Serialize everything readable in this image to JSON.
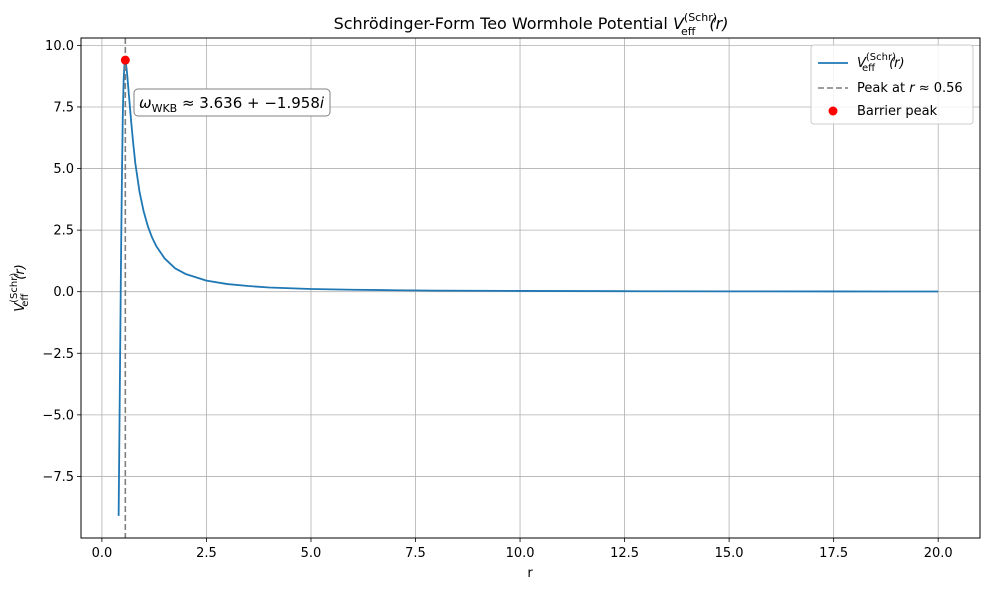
{
  "chart_data": {
    "type": "line",
    "title": "Schrödinger-Form Teo Wormhole Potential V_eff^(Schr)(r)",
    "title_parts": {
      "prefix": "Schrödinger-Form Teo Wormhole Potential ",
      "symbol": "V",
      "sub": "eff",
      "sup": "(Schr)",
      "suffix": "(r)"
    },
    "xlabel": "r",
    "ylabel": "V_eff^(Schr)(r)",
    "xlim": [
      -0.5,
      21.0
    ],
    "ylim": [
      -10.0,
      10.3
    ],
    "xticks": [
      0.0,
      2.5,
      5.0,
      7.5,
      10.0,
      12.5,
      15.0,
      17.5,
      20.0
    ],
    "xtick_labels": [
      "0.0",
      "2.5",
      "5.0",
      "7.5",
      "10.0",
      "12.5",
      "15.0",
      "17.5",
      "20.0"
    ],
    "yticks": [
      -7.5,
      -5.0,
      -2.5,
      0.0,
      2.5,
      5.0,
      7.5,
      10.0
    ],
    "ytick_labels": [
      "−7.5",
      "−5.0",
      "−2.5",
      "0.0",
      "2.5",
      "5.0",
      "7.5",
      "10.0"
    ],
    "grid": true,
    "legend_position": "top-right",
    "series": [
      {
        "name": "V_eff^(Schr)(r)",
        "kind": "line",
        "color": "#1f77b4",
        "x": [
          0.4,
          0.42,
          0.44,
          0.46,
          0.48,
          0.5,
          0.52,
          0.54,
          0.56,
          0.58,
          0.6,
          0.63,
          0.66,
          0.7,
          0.75,
          0.8,
          0.9,
          1.0,
          1.1,
          1.2,
          1.3,
          1.5,
          1.75,
          2.0,
          2.5,
          3.0,
          3.5,
          4.0,
          5.0,
          6.0,
          7.0,
          8.0,
          10.0,
          12.5,
          15.0,
          17.5,
          20.0
        ],
        "y": [
          -9.1,
          -5.5,
          -1.8,
          1.8,
          4.8,
          7.2,
          8.6,
          9.25,
          9.4,
          9.2,
          8.9,
          8.3,
          7.7,
          6.9,
          6.0,
          5.2,
          4.05,
          3.25,
          2.65,
          2.2,
          1.85,
          1.35,
          0.95,
          0.72,
          0.45,
          0.31,
          0.23,
          0.17,
          0.11,
          0.08,
          0.06,
          0.045,
          0.03,
          0.02,
          0.014,
          0.01,
          0.008
        ]
      },
      {
        "name": "Peak at r≈0.56",
        "kind": "vline",
        "color": "#7f7f7f",
        "x": 0.56
      },
      {
        "name": "Barrier peak",
        "kind": "point",
        "color": "#ff0000",
        "x": 0.56,
        "y": 9.4
      }
    ],
    "annotation": {
      "text": "ω_WKB ≈ 3.636 + −1.958i",
      "omega": "ω",
      "sub": "WKB",
      "rest": " ≈ 3.636 + −1.958",
      "imag": "i",
      "x": 0.75,
      "y": 7.7
    },
    "legend": {
      "entries": [
        {
          "symbol": "V",
          "sub": "eff",
          "sup": "(Schr)",
          "suffix": "(r)"
        },
        {
          "prefix": "Peak at ",
          "var": "r",
          "suffix": " ≈ 0.56"
        },
        {
          "label": "Barrier peak"
        }
      ]
    }
  }
}
